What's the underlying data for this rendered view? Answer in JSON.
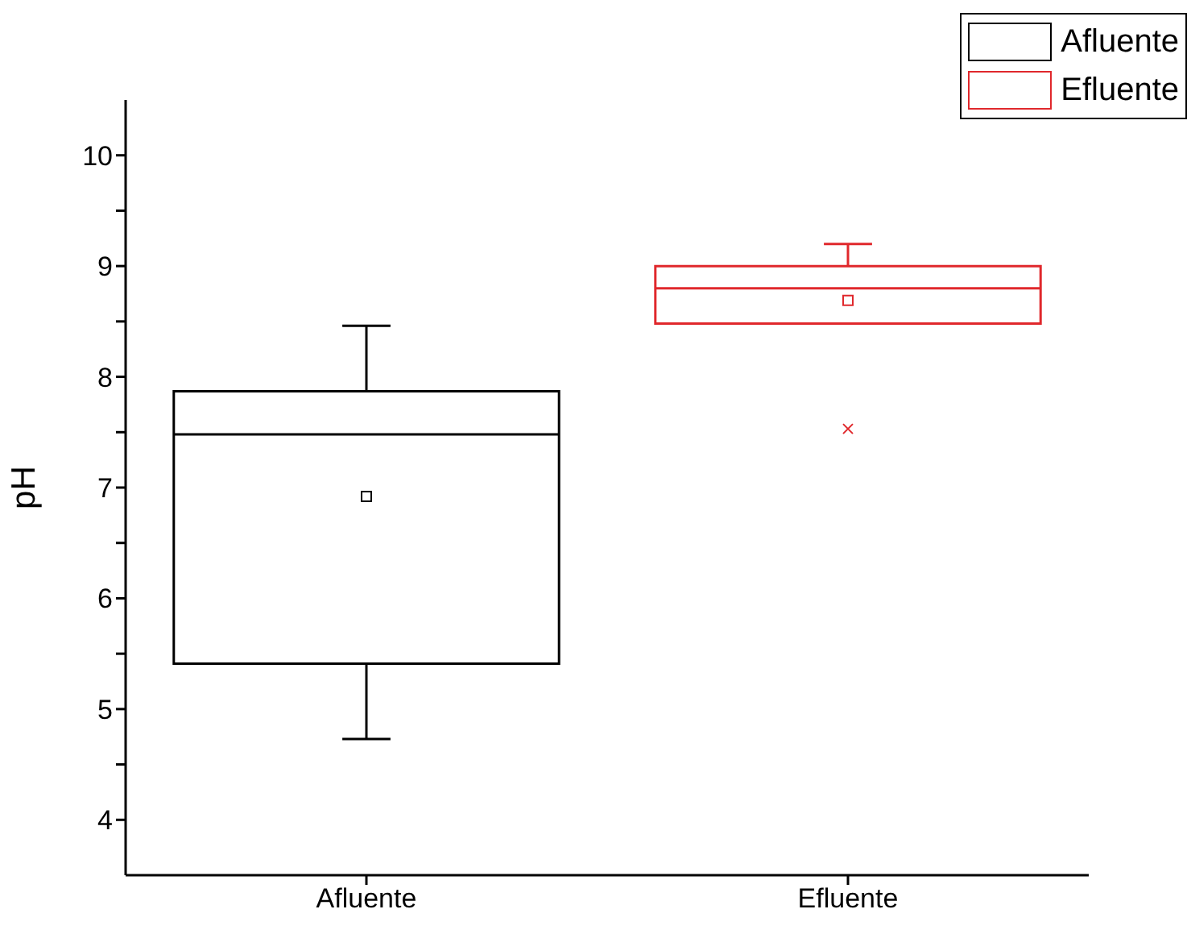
{
  "chart_data": {
    "type": "box",
    "ylabel": "pH",
    "categories": [
      "Afluente",
      "Efluente"
    ],
    "series": [
      {
        "name": "Afluente",
        "color": "#000000",
        "boxes": [
          {
            "low": 4.73,
            "q1": 5.41,
            "median": 7.48,
            "q3": 7.87,
            "high": 8.46,
            "mean": 6.92
          },
          null
        ]
      },
      {
        "name": "Efluente",
        "color": "#e0282c",
        "boxes": [
          null,
          {
            "low": 8.48,
            "q1": 8.48,
            "median": 8.8,
            "q3": 9.0,
            "high": 9.2,
            "mean": 8.69,
            "outliers": [
              7.53
            ]
          }
        ]
      }
    ],
    "ylim": [
      3.5,
      10.5
    ],
    "yticks": [
      4,
      {
        "value": 4.5,
        "label": null
      },
      5,
      {
        "value": 5.5,
        "label": null
      },
      6,
      {
        "value": 6.5,
        "label": null
      },
      7,
      {
        "value": 7.5,
        "label": null
      },
      8,
      {
        "value": 8.5,
        "label": null
      },
      9,
      {
        "value": 9.5,
        "label": null
      },
      10
    ],
    "legend": "top right",
    "marker": "square"
  }
}
